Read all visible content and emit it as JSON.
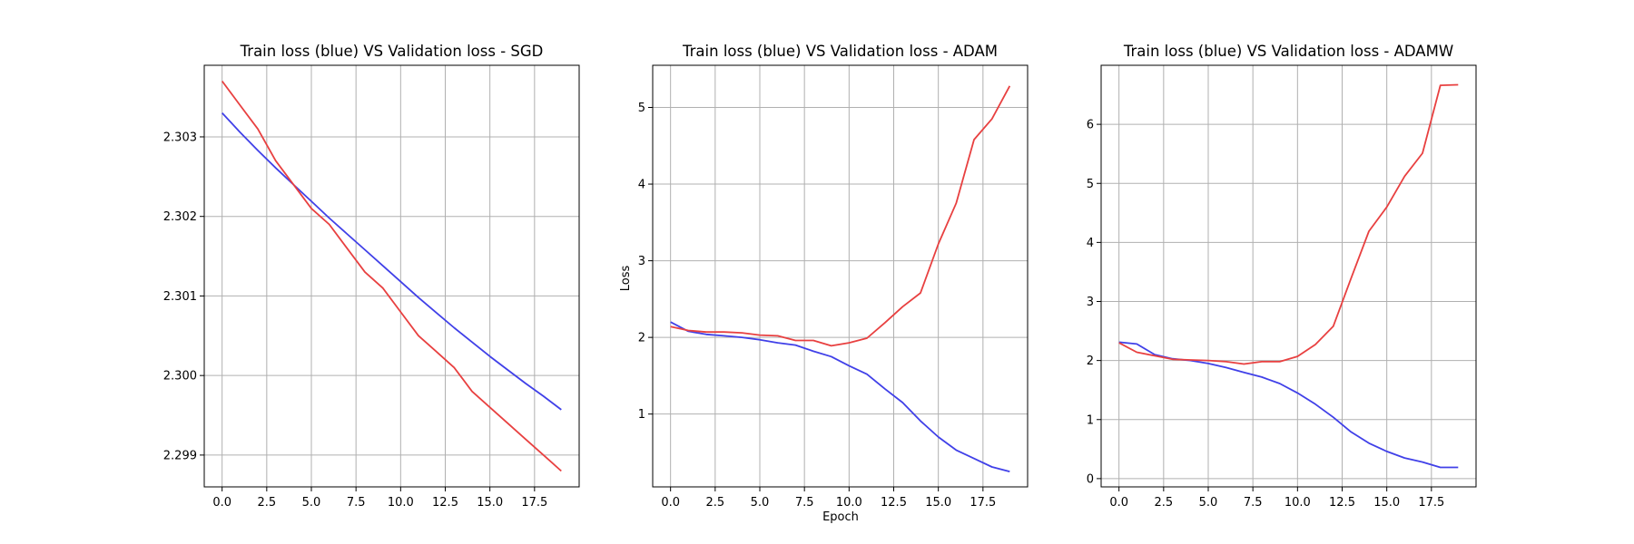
{
  "figure": {
    "xlabel_shared": "Epoch",
    "ylabel_shared": "Loss"
  },
  "colors": {
    "train": "#4040e8",
    "validation": "#e84040",
    "grid": "#b0b0b0"
  },
  "chart_data": [
    {
      "type": "line",
      "title": "Train loss (blue) VS Validation loss - SGD",
      "xlabel": "",
      "ylabel": "",
      "xlim": [
        -1,
        20
      ],
      "ylim": [
        2.2986,
        2.3039
      ],
      "xticks": [
        0.0,
        2.5,
        5.0,
        7.5,
        10.0,
        12.5,
        15.0,
        17.5
      ],
      "xtick_labels": [
        "0.0",
        "2.5",
        "5.0",
        "7.5",
        "10.0",
        "12.5",
        "15.0",
        "17.5"
      ],
      "yticks": [
        2.299,
        2.3,
        2.301,
        2.302,
        2.303
      ],
      "ytick_labels": [
        "2.299",
        "2.300",
        "2.301",
        "2.302",
        "2.303"
      ],
      "grid": true,
      "x": [
        0,
        1,
        2,
        3,
        4,
        5,
        6,
        7,
        8,
        9,
        10,
        11,
        12,
        13,
        14,
        15,
        16,
        17,
        18,
        19
      ],
      "series": [
        {
          "color": "#4040e8",
          "values": [
            2.3033,
            2.30306,
            2.30283,
            2.30261,
            2.3024,
            2.30219,
            2.30198,
            2.30178,
            2.30158,
            2.30138,
            2.30118,
            2.30098,
            2.30079,
            2.3006,
            2.30042,
            2.30024,
            2.30007,
            2.2999,
            2.29974,
            2.29957
          ]
        },
        {
          "color": "#e84040",
          "values": [
            2.3037,
            2.3034,
            2.3031,
            2.3027,
            2.3024,
            2.3021,
            2.3019,
            2.3016,
            2.3013,
            2.3011,
            2.3008,
            2.3005,
            2.3003,
            2.3001,
            2.2998,
            2.2996,
            2.2994,
            2.2992,
            2.299,
            2.2988
          ]
        }
      ]
    },
    {
      "type": "line",
      "title": "Train loss (blue) VS Validation loss - ADAM",
      "xlabel": "Epoch",
      "ylabel": "Loss",
      "xlim": [
        -1,
        20
      ],
      "ylim": [
        0.05,
        5.55
      ],
      "xticks": [
        0.0,
        2.5,
        5.0,
        7.5,
        10.0,
        12.5,
        15.0,
        17.5
      ],
      "xtick_labels": [
        "0.0",
        "2.5",
        "5.0",
        "7.5",
        "10.0",
        "12.5",
        "15.0",
        "17.5"
      ],
      "yticks": [
        1,
        2,
        3,
        4,
        5
      ],
      "ytick_labels": [
        "1",
        "2",
        "3",
        "4",
        "5"
      ],
      "grid": true,
      "x": [
        0,
        1,
        2,
        3,
        4,
        5,
        6,
        7,
        8,
        9,
        10,
        11,
        12,
        13,
        14,
        15,
        16,
        17,
        18,
        19
      ],
      "series": [
        {
          "color": "#4040e8",
          "values": [
            2.2,
            2.08,
            2.04,
            2.02,
            2.0,
            1.97,
            1.93,
            1.9,
            1.82,
            1.75,
            1.63,
            1.52,
            1.33,
            1.15,
            0.91,
            0.7,
            0.53,
            0.42,
            0.31,
            0.25
          ]
        },
        {
          "color": "#e84040",
          "values": [
            2.14,
            2.09,
            2.07,
            2.07,
            2.06,
            2.03,
            2.02,
            1.96,
            1.96,
            1.89,
            1.93,
            1.99,
            2.19,
            2.4,
            2.58,
            3.22,
            3.75,
            4.58,
            4.85,
            5.28
          ]
        }
      ]
    },
    {
      "type": "line",
      "title": "Train loss (blue) VS Validation loss - ADAMW",
      "xlabel": "",
      "ylabel": "",
      "xlim": [
        -1,
        20
      ],
      "ylim": [
        -0.14,
        7.0
      ],
      "xticks": [
        0.0,
        2.5,
        5.0,
        7.5,
        10.0,
        12.5,
        15.0,
        17.5
      ],
      "xtick_labels": [
        "0.0",
        "2.5",
        "5.0",
        "7.5",
        "10.0",
        "12.5",
        "15.0",
        "17.5"
      ],
      "yticks": [
        0,
        1,
        2,
        3,
        4,
        5,
        6
      ],
      "ytick_labels": [
        "0",
        "1",
        "2",
        "3",
        "4",
        "5",
        "6"
      ],
      "grid": true,
      "x": [
        0,
        1,
        2,
        3,
        4,
        5,
        6,
        7,
        8,
        9,
        10,
        11,
        12,
        13,
        14,
        15,
        16,
        17,
        18,
        19
      ],
      "series": [
        {
          "color": "#4040e8",
          "values": [
            2.31,
            2.28,
            2.1,
            2.03,
            2.0,
            1.95,
            1.88,
            1.8,
            1.72,
            1.61,
            1.45,
            1.26,
            1.04,
            0.79,
            0.6,
            0.46,
            0.35,
            0.28,
            0.19,
            0.19
          ]
        },
        {
          "color": "#e84040",
          "values": [
            2.3,
            2.14,
            2.08,
            2.02,
            2.01,
            2.0,
            1.98,
            1.94,
            1.98,
            1.98,
            2.07,
            2.27,
            2.58,
            3.39,
            4.19,
            4.6,
            5.12,
            5.51,
            6.66,
            6.67
          ]
        }
      ]
    }
  ]
}
